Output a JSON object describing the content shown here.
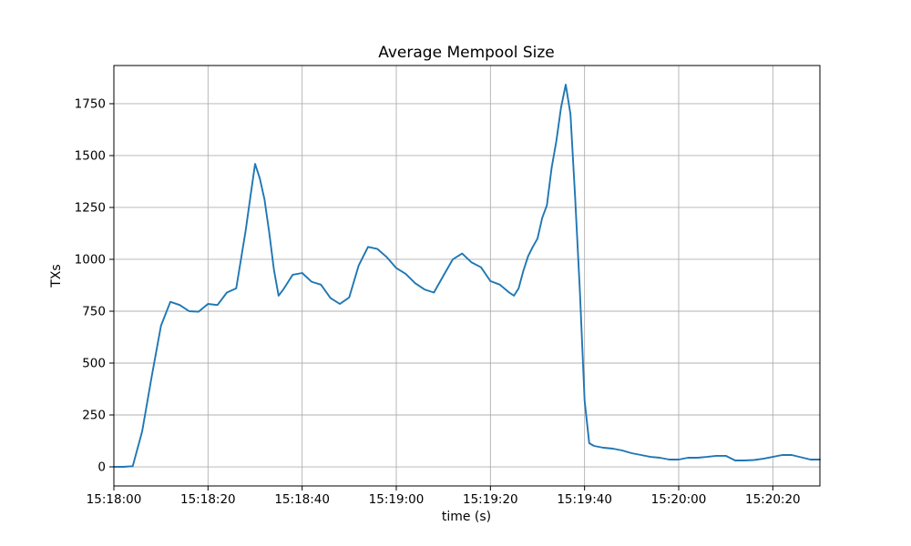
{
  "chart_data": {
    "type": "line",
    "title": "Average Mempool Size",
    "xlabel": "time (s)",
    "ylabel": "TXs",
    "grid": true,
    "legend": null,
    "line_color": "#1f77b4",
    "grid_color": "#b0b0b0",
    "x_unit": "seconds after 15:18:00",
    "xlim": [
      0,
      150
    ],
    "ylim": [
      -92,
      1934
    ],
    "x_ticks": [
      {
        "t": 0,
        "label": "15:18:00"
      },
      {
        "t": 20,
        "label": "15:18:20"
      },
      {
        "t": 40,
        "label": "15:18:40"
      },
      {
        "t": 60,
        "label": "15:19:00"
      },
      {
        "t": 80,
        "label": "15:19:20"
      },
      {
        "t": 100,
        "label": "15:19:40"
      },
      {
        "t": 120,
        "label": "15:20:00"
      },
      {
        "t": 140,
        "label": "15:20:20"
      }
    ],
    "y_ticks": [
      0,
      250,
      500,
      750,
      1000,
      1250,
      1500,
      1750
    ],
    "series": [
      {
        "name": "average mempool size",
        "points": [
          [
            0,
            0
          ],
          [
            2,
            0
          ],
          [
            4,
            3
          ],
          [
            6,
            170
          ],
          [
            8,
            430
          ],
          [
            10,
            680
          ],
          [
            12,
            795
          ],
          [
            14,
            780
          ],
          [
            16,
            750
          ],
          [
            18,
            748
          ],
          [
            20,
            785
          ],
          [
            22,
            780
          ],
          [
            24,
            840
          ],
          [
            26,
            860
          ],
          [
            27,
            1000
          ],
          [
            28,
            1140
          ],
          [
            29,
            1300
          ],
          [
            30,
            1460
          ],
          [
            31,
            1390
          ],
          [
            32,
            1290
          ],
          [
            33,
            1130
          ],
          [
            34,
            950
          ],
          [
            35,
            825
          ],
          [
            36,
            855
          ],
          [
            38,
            926
          ],
          [
            40,
            934
          ],
          [
            42,
            892
          ],
          [
            44,
            878
          ],
          [
            46,
            814
          ],
          [
            48,
            785
          ],
          [
            50,
            816
          ],
          [
            52,
            970
          ],
          [
            54,
            1060
          ],
          [
            56,
            1050
          ],
          [
            58,
            1010
          ],
          [
            60,
            958
          ],
          [
            62,
            930
          ],
          [
            64,
            885
          ],
          [
            66,
            855
          ],
          [
            68,
            840
          ],
          [
            70,
            921
          ],
          [
            72,
            1000
          ],
          [
            74,
            1028
          ],
          [
            76,
            985
          ],
          [
            78,
            962
          ],
          [
            80,
            895
          ],
          [
            82,
            878
          ],
          [
            84,
            840
          ],
          [
            85,
            825
          ],
          [
            86,
            860
          ],
          [
            87,
            945
          ],
          [
            88,
            1015
          ],
          [
            89,
            1060
          ],
          [
            90,
            1100
          ],
          [
            91,
            1200
          ],
          [
            92,
            1260
          ],
          [
            93,
            1440
          ],
          [
            94,
            1570
          ],
          [
            95,
            1730
          ],
          [
            96,
            1842
          ],
          [
            97,
            1700
          ],
          [
            98,
            1300
          ],
          [
            99,
            850
          ],
          [
            100,
            320
          ],
          [
            101,
            114
          ],
          [
            102,
            101
          ],
          [
            104,
            92
          ],
          [
            106,
            88
          ],
          [
            108,
            79
          ],
          [
            110,
            66
          ],
          [
            112,
            57
          ],
          [
            114,
            48
          ],
          [
            116,
            44
          ],
          [
            118,
            35
          ],
          [
            120,
            35
          ],
          [
            122,
            44
          ],
          [
            124,
            44
          ],
          [
            126,
            48
          ],
          [
            128,
            53
          ],
          [
            130,
            53
          ],
          [
            132,
            31
          ],
          [
            134,
            31
          ],
          [
            136,
            33
          ],
          [
            138,
            39
          ],
          [
            140,
            48
          ],
          [
            142,
            57
          ],
          [
            144,
            57
          ],
          [
            146,
            46
          ],
          [
            148,
            35
          ],
          [
            150,
            35
          ]
        ]
      }
    ]
  }
}
